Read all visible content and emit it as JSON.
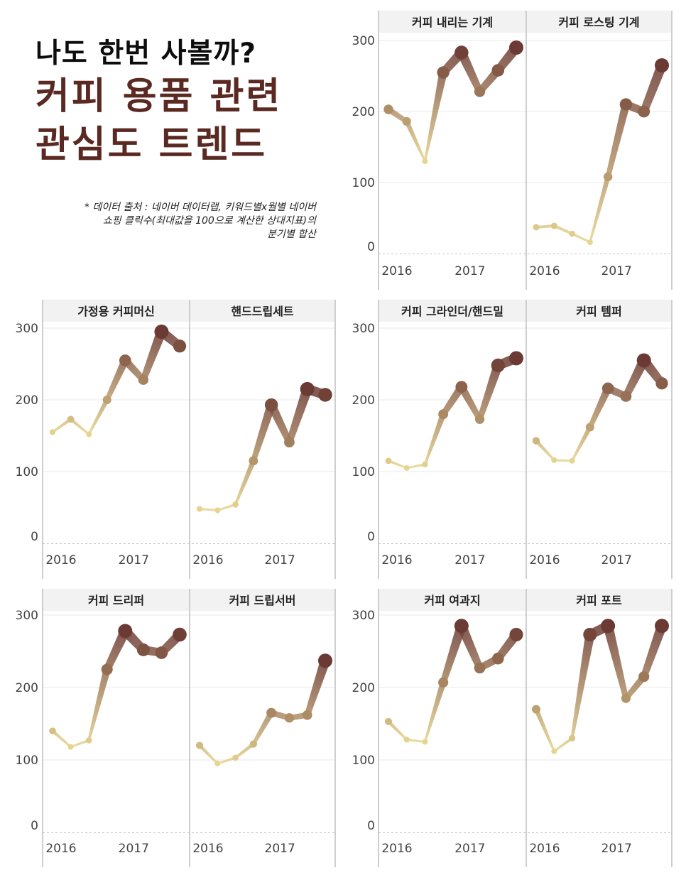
{
  "header": {
    "line1": "나도 한번 사볼까?",
    "line2": "커피 용품 관련",
    "line3": "관심도 트렌드",
    "source_line1": "* 데이터 출처 : 네이버 데이터랩, 키워드별x월별 네이버",
    "source_line2": "쇼핑 클릭수(최대값을 100으로 계산한 상대지표)의",
    "source_line3": "분기별 합산"
  },
  "colors": {
    "low": "#e6d590",
    "high": "#6b3a34",
    "header_bg": "#f2f2f2",
    "grid": "#e8e8e8"
  },
  "chart_data": [
    {
      "type": "line",
      "x_ticks": [
        "2016",
        "2017"
      ],
      "y_ticks": [
        "0",
        "100",
        "200",
        "300"
      ],
      "ylim": [
        0,
        310
      ],
      "panels": [
        {
          "title": "커피 내리는 기계",
          "x": [
            1,
            2,
            3,
            4,
            5,
            6,
            7,
            8
          ],
          "values": [
            203,
            186,
            130,
            255,
            283,
            228,
            258,
            290
          ]
        },
        {
          "title": "커피 로스팅 기계",
          "x": [
            1,
            2,
            3,
            4,
            5,
            6,
            7,
            8
          ],
          "values": [
            37,
            39,
            28,
            16,
            108,
            210,
            200,
            265
          ]
        }
      ]
    },
    {
      "type": "line",
      "x_ticks": [
        "2016",
        "2017"
      ],
      "y_ticks": [
        "0",
        "100",
        "200",
        "300"
      ],
      "ylim": [
        0,
        310
      ],
      "panels": [
        {
          "title": "가정용 커피머신",
          "x": [
            1,
            2,
            3,
            4,
            5,
            6,
            7,
            8
          ],
          "values": [
            155,
            173,
            152,
            200,
            255,
            228,
            295,
            275
          ]
        },
        {
          "title": "핸드드립세트",
          "x": [
            1,
            2,
            3,
            4,
            5,
            6,
            7,
            8
          ],
          "values": [
            48,
            46,
            54,
            115,
            193,
            141,
            215,
            207
          ]
        }
      ]
    },
    {
      "type": "line",
      "x_ticks": [
        "2016",
        "2017"
      ],
      "y_ticks": [
        "0",
        "100",
        "200",
        "300"
      ],
      "ylim": [
        0,
        310
      ],
      "panels": [
        {
          "title": "커피 그라인더/핸드밀",
          "x": [
            1,
            2,
            3,
            4,
            5,
            6,
            7,
            8
          ],
          "values": [
            115,
            105,
            110,
            180,
            218,
            173,
            248,
            258
          ]
        },
        {
          "title": "커피 템퍼",
          "x": [
            1,
            2,
            3,
            4,
            5,
            6,
            7,
            8
          ],
          "values": [
            143,
            116,
            115,
            162,
            216,
            205,
            255,
            223
          ]
        }
      ]
    },
    {
      "type": "line",
      "x_ticks": [
        "2016",
        "2017"
      ],
      "y_ticks": [
        "0",
        "100",
        "200",
        "300"
      ],
      "ylim": [
        0,
        310
      ],
      "panels": [
        {
          "title": "커피 드리퍼",
          "x": [
            1,
            2,
            3,
            4,
            5,
            6,
            7,
            8
          ],
          "values": [
            140,
            118,
            127,
            225,
            278,
            252,
            248,
            273
          ]
        },
        {
          "title": "커피 드립서버",
          "x": [
            1,
            2,
            3,
            4,
            5,
            6,
            7,
            8
          ],
          "values": [
            120,
            95,
            103,
            122,
            165,
            158,
            162,
            237
          ]
        }
      ]
    },
    {
      "type": "line",
      "x_ticks": [
        "2016",
        "2017"
      ],
      "y_ticks": [
        "0",
        "100",
        "200",
        "300"
      ],
      "ylim": [
        0,
        310
      ],
      "panels": [
        {
          "title": "커피 여과지",
          "x": [
            1,
            2,
            3,
            4,
            5,
            6,
            7,
            8
          ],
          "values": [
            153,
            128,
            125,
            207,
            285,
            227,
            240,
            273
          ]
        },
        {
          "title": "커피 포트",
          "x": [
            1,
            2,
            3,
            4,
            5,
            6,
            7,
            8
          ],
          "values": [
            170,
            112,
            130,
            273,
            285,
            185,
            215,
            285
          ]
        }
      ]
    }
  ]
}
